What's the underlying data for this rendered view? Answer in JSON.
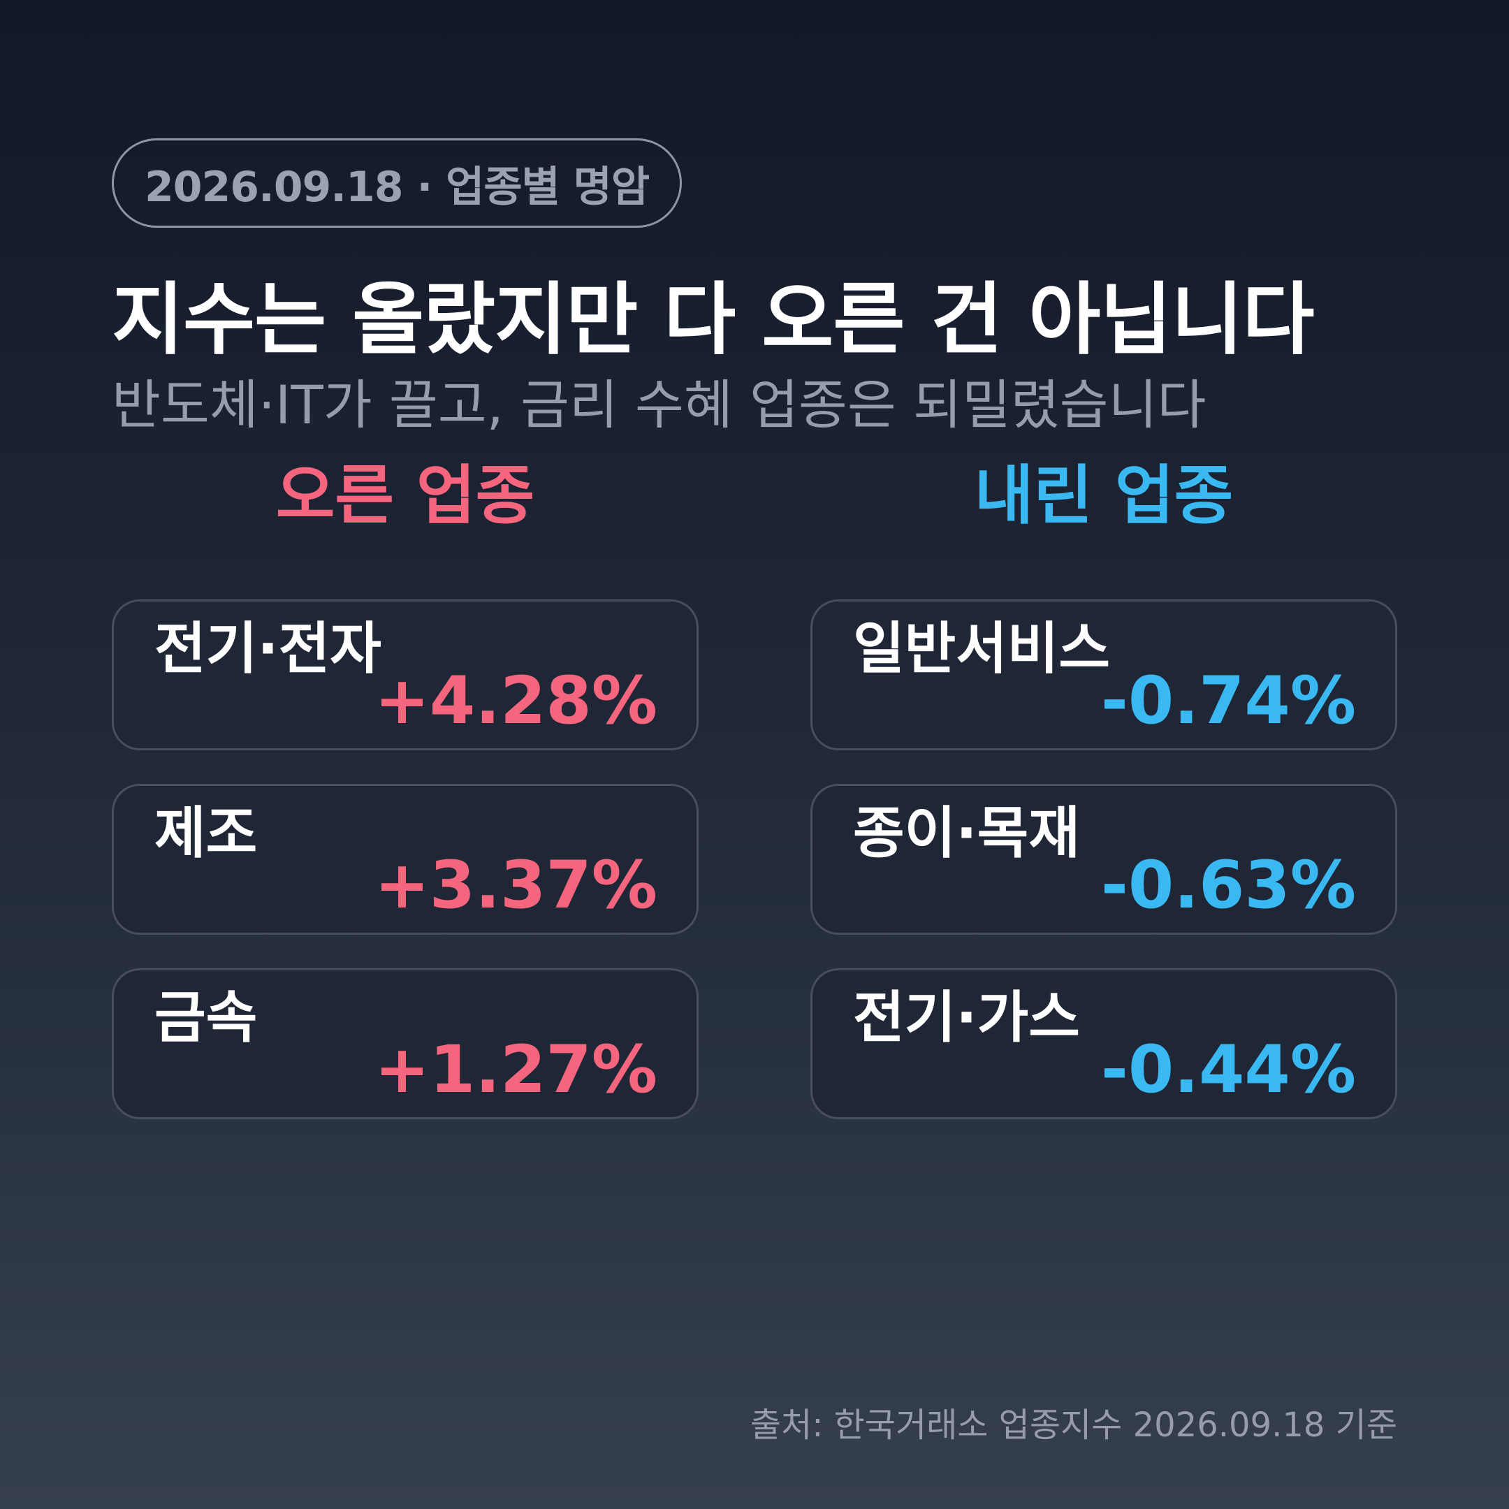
{
  "badge": "2026.09.18 · 업종별 명암",
  "title": "지수는 올랐지만 다 오른 건 아닙니다",
  "subtitle": "반도체·IT가 끌고, 금리 수혜 업종은 되밀렸습니다",
  "colors": {
    "up": "#f5667e",
    "down": "#3ab8f1"
  },
  "gainers": {
    "heading": "오른 업종",
    "items": [
      {
        "name": "전기·전자",
        "value": "+4.28%"
      },
      {
        "name": "제조",
        "value": "+3.37%"
      },
      {
        "name": "금속",
        "value": "+1.27%"
      }
    ]
  },
  "losers": {
    "heading": "내린 업종",
    "items": [
      {
        "name": "일반서비스",
        "value": "-0.74%"
      },
      {
        "name": "종이·목재",
        "value": "-0.63%"
      },
      {
        "name": "전기·가스",
        "value": "-0.44%"
      }
    ]
  },
  "source": "출처: 한국거래소 업종지수 2026.09.18 기준"
}
